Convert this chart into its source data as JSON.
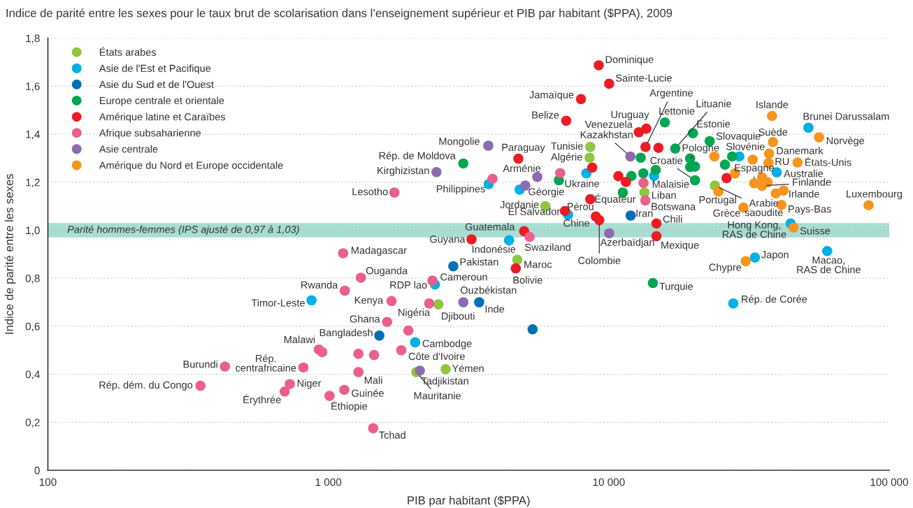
{
  "chart_data": {
    "type": "scatter",
    "title": "Indice de parité entre les sexes pour le taux brut de scolarisation dans l’enseignement supérieur et PIB par habitant ($PPA), 2009",
    "xlabel": "PIB par habitant ($PPA)",
    "ylabel": "Indice de parité entre les sexes",
    "log": "x",
    "xlim": [
      100,
      100000
    ],
    "xticks": [
      {
        "value": 100,
        "label": "100"
      },
      {
        "value": 1000,
        "label": "1 000"
      },
      {
        "value": 10000,
        "label": "10 000"
      },
      {
        "value": 100000,
        "label": "100 000"
      }
    ],
    "ylim": [
      0,
      1.8
    ],
    "yticks": [
      0,
      {
        "value": 0.2,
        "label": "0,2"
      },
      {
        "value": 0.4,
        "label": "0,4"
      },
      {
        "value": 0.6,
        "label": "0,6"
      },
      {
        "value": 0.8,
        "label": "0,8"
      },
      {
        "value": 1.0,
        "label": "1,0"
      },
      {
        "value": 1.2,
        "label": "1,2"
      },
      {
        "value": 1.4,
        "label": "1,4"
      },
      {
        "value": 1.6,
        "label": "1,6"
      },
      {
        "value": 1.8,
        "label": "1,8"
      }
    ],
    "grid": "y",
    "legend": "top left",
    "marker": "circle",
    "bands": [
      {
        "axis": "y",
        "from": 0.97,
        "to": 1.03,
        "label": "Parité hommes-femmes (IPS ajusté de 0,97 à 1,03)",
        "color": "#a8ddd2"
      }
    ],
    "series": [
      {
        "name": "États arabes",
        "color": "#8dc63f",
        "x": [
          8590,
          8540,
          5940,
          4720,
          2470,
          2620,
          2060,
          13400,
          23900
        ],
        "values": [
          1.347,
          1.302,
          1.1,
          0.877,
          0.691,
          0.421,
          0.409,
          1.157,
          1.186
        ]
      },
      {
        "name": "Asie de l'Est et Pacifique",
        "color": "#00b0e6",
        "x": [
          871,
          2400,
          2040,
          4410,
          3730,
          4810,
          8320,
          7160,
          14500,
          29200,
          39700,
          51500,
          44500,
          33200,
          60100,
          27800
        ],
        "values": [
          0.708,
          0.774,
          0.533,
          0.958,
          1.192,
          1.169,
          1.237,
          1.064,
          1.226,
          1.307,
          1.241,
          1.427,
          1.028,
          0.886,
          0.913,
          0.695
        ]
      },
      {
        "name": "Asie du Sud et de l'Ouest",
        "color": "#0070b5",
        "x": [
          2790,
          1520,
          3450,
          5350,
          11970
        ],
        "values": [
          0.85,
          0.561,
          0.7,
          0.587,
          1.061
        ]
      },
      {
        "name": "Europe centrale et orientale",
        "color": "#00a651",
        "x": [
          3030,
          6640,
          15850,
          19950,
          17260,
          22900,
          19500,
          13000,
          19500,
          20300,
          20300,
          14700,
          13280,
          12040,
          11220,
          27540,
          25950,
          14360
        ],
        "values": [
          1.278,
          1.208,
          1.449,
          1.404,
          1.34,
          1.371,
          1.299,
          1.302,
          1.263,
          1.265,
          1.208,
          1.251,
          1.237,
          1.226,
          1.157,
          1.307,
          1.273,
          0.78
        ]
      },
      {
        "name": "Amérique latine et Caraïbes",
        "color": "#ed1c24",
        "x": [
          9210,
          10030,
          7960,
          7050,
          4760,
          8730,
          8590,
          6980,
          8990,
          9250,
          4990,
          3240,
          4660,
          13610,
          12800,
          13520,
          15040,
          10820,
          11510,
          14790,
          14790,
          26300
        ],
        "values": [
          1.687,
          1.61,
          1.546,
          1.456,
          1.298,
          1.261,
          1.129,
          1.08,
          1.057,
          1.042,
          0.996,
          0.962,
          0.841,
          1.423,
          1.408,
          1.347,
          1.343,
          1.225,
          1.201,
          1.028,
          0.975,
          1.217
        ]
      },
      {
        "name": "Afrique subsaharienne",
        "color": "#ec5f8b",
        "x": [
          1129,
          1306,
          1145,
          1680,
          2290,
          1620,
          1930,
          2350,
          5220,
          1720,
          3850,
          6710,
          925,
          951,
          815,
          428,
          350,
          729,
          699,
          1010,
          1140,
          1280,
          1280,
          1456,
          1820,
          1445,
          13300,
          13500
        ],
        "values": [
          0.904,
          0.802,
          0.748,
          0.705,
          0.695,
          0.618,
          0.582,
          0.79,
          0.972,
          1.157,
          1.214,
          1.238,
          0.503,
          0.492,
          0.428,
          0.432,
          0.352,
          0.359,
          0.328,
          0.31,
          0.335,
          0.409,
          0.485,
          0.48,
          0.5,
          0.175,
          1.197,
          1.124
        ]
      },
      {
        "name": "Asie centrale",
        "color": "#8c6bb1",
        "x": [
          3720,
          2430,
          5560,
          5040,
          11940,
          10040,
          3030,
          2120
        ],
        "values": [
          1.352,
          1.242,
          1.222,
          1.186,
          1.307,
          0.987,
          0.7,
          0.415
        ]
      },
      {
        "name": "Amérique du Nord et Europe occidentale",
        "color": "#f7941d",
        "x": [
          38200,
          56200,
          38500,
          37300,
          37100,
          47100,
          23800,
          32600,
          28200,
          35200,
          36800,
          33000,
          35200,
          39400,
          42000,
          24600,
          30200,
          41300,
          84400,
          45600,
          30800
        ],
        "values": [
          1.476,
          1.387,
          1.367,
          1.319,
          1.28,
          1.282,
          1.307,
          1.294,
          1.237,
          1.22,
          1.2,
          1.195,
          1.185,
          1.153,
          1.165,
          1.161,
          1.094,
          1.105,
          1.104,
          1.011,
          0.871
        ]
      }
    ],
    "annotations": [
      {
        "text": "Dominique",
        "x": 9210,
        "y": 1.687
      },
      {
        "text": "Sainte-Lucie",
        "x": 10030,
        "y": 1.61
      },
      {
        "text": "Jamaïque",
        "x": 7960,
        "y": 1.546
      },
      {
        "text": "Belize",
        "x": 7050,
        "y": 1.456
      },
      {
        "text": "Argentine",
        "x": 13520,
        "y": 1.347
      },
      {
        "text": "Uruguay",
        "x": 13610,
        "y": 1.423
      },
      {
        "text": "Venezuela",
        "x": 12800,
        "y": 1.408
      },
      {
        "text": "Lettonie",
        "x": 15850,
        "y": 1.449
      },
      {
        "text": "Lituanie",
        "x": 17260,
        "y": 1.34
      },
      {
        "text": "Estonie",
        "x": 19950,
        "y": 1.404
      },
      {
        "text": "Kazakhstan",
        "x": 11940,
        "y": 1.307
      },
      {
        "text": "Slovaquie",
        "x": 22900,
        "y": 1.371
      },
      {
        "text": "Pologne",
        "x": 19500,
        "y": 1.299
      },
      {
        "text": "Croatie",
        "x": 20300,
        "y": 1.208
      },
      {
        "text": "Slovénie",
        "x": 27540,
        "y": 1.307
      },
      {
        "text": "Islande",
        "x": 38200,
        "y": 1.476
      },
      {
        "text": "Brunei Darussalam",
        "x": 51500,
        "y": 1.427
      },
      {
        "text": "Suède",
        "x": 38500,
        "y": 1.367
      },
      {
        "text": "Norvège",
        "x": 56200,
        "y": 1.387
      },
      {
        "text": "Danemark",
        "x": 37300,
        "y": 1.319
      },
      {
        "text": "RU",
        "x": 37100,
        "y": 1.28
      },
      {
        "text": "États-Unis",
        "x": 47100,
        "y": 1.282
      },
      {
        "text": "Espagne",
        "x": 33000,
        "y": 1.195
      },
      {
        "text": "Australie",
        "x": 39700,
        "y": 1.241
      },
      {
        "text": "Finlande",
        "x": 35200,
        "y": 1.185
      },
      {
        "text": "Irlande",
        "x": 42000,
        "y": 1.165
      },
      {
        "text": "Luxembourg",
        "x": 84400,
        "y": 1.104
      },
      {
        "text": "Portugal",
        "x": 24600,
        "y": 1.161
      },
      {
        "text": "Arabie\nsaoudite",
        "x": 23900,
        "y": 1.186
      },
      {
        "text": "Grèce",
        "x": 30200,
        "y": 1.094
      },
      {
        "text": "Pays-Bas",
        "x": 41300,
        "y": 1.105
      },
      {
        "text": "Hong Kong,\nRAS de Chine",
        "x": 44500,
        "y": 1.028
      },
      {
        "text": "Suisse",
        "x": 45600,
        "y": 1.011
      },
      {
        "text": "Japon",
        "x": 33200,
        "y": 0.886
      },
      {
        "text": "Chypre",
        "x": 30800,
        "y": 0.871
      },
      {
        "text": "Macao,\nRAS de Chine",
        "x": 60100,
        "y": 0.913
      },
      {
        "text": "Rép. de Corée",
        "x": 27800,
        "y": 0.695
      },
      {
        "text": "Turquie",
        "x": 14360,
        "y": 0.78
      },
      {
        "text": "Mexique",
        "x": 14790,
        "y": 0.975
      },
      {
        "text": "Chili",
        "x": 14790,
        "y": 1.028
      },
      {
        "text": "Azerbaïdjan",
        "x": 10040,
        "y": 0.987
      },
      {
        "text": "Iran",
        "x": 11970,
        "y": 1.061
      },
      {
        "text": "Botswana",
        "x": 13500,
        "y": 1.124
      },
      {
        "text": "Liban",
        "x": 13400,
        "y": 1.157
      },
      {
        "text": "Malaisie",
        "x": 14500,
        "y": 1.226
      },
      {
        "text": "Équateur",
        "x": 8590,
        "y": 1.129
      },
      {
        "text": "Pérou",
        "x": 8990,
        "y": 1.057
      },
      {
        "text": "Colombie",
        "x": 9250,
        "y": 1.042
      },
      {
        "text": "Chine",
        "x": 7160,
        "y": 1.064
      },
      {
        "text": "El Salvador",
        "x": 6980,
        "y": 1.08
      },
      {
        "text": "Jordanie",
        "x": 5940,
        "y": 1.1
      },
      {
        "text": "Ukraine",
        "x": 6640,
        "y": 1.208
      },
      {
        "text": "Géorgie",
        "x": 5040,
        "y": 1.186
      },
      {
        "text": "Arménie",
        "x": 5560,
        "y": 1.222
      },
      {
        "text": "Paraguay",
        "x": 4760,
        "y": 1.298
      },
      {
        "text": "Tunisie",
        "x": 8590,
        "y": 1.347
      },
      {
        "text": "Algérie",
        "x": 8540,
        "y": 1.302
      },
      {
        "text": "Mongolie",
        "x": 3720,
        "y": 1.352
      },
      {
        "text": "Rép. de Moldova",
        "x": 3030,
        "y": 1.278
      },
      {
        "text": "Kirghizistan",
        "x": 2430,
        "y": 1.242
      },
      {
        "text": "Philippines",
        "x": 3730,
        "y": 1.192
      },
      {
        "text": "Lesotho",
        "x": 1720,
        "y": 1.157
      },
      {
        "text": "Guatemala",
        "x": 4990,
        "y": 0.996
      },
      {
        "text": "Guyana",
        "x": 3240,
        "y": 0.962
      },
      {
        "text": "Indonésie",
        "x": 4410,
        "y": 0.958
      },
      {
        "text": "Swaziland",
        "x": 5220,
        "y": 0.972
      },
      {
        "text": "Pakistan",
        "x": 2790,
        "y": 0.85
      },
      {
        "text": "Maroc",
        "x": 4720,
        "y": 0.877
      },
      {
        "text": "Bolivie",
        "x": 4660,
        "y": 0.841
      },
      {
        "text": "Cameroun",
        "x": 2350,
        "y": 0.79
      },
      {
        "text": "RDP lao",
        "x": 2400,
        "y": 0.774
      },
      {
        "text": "Ouzbékistan",
        "x": 3030,
        "y": 0.7
      },
      {
        "text": "Inde",
        "x": 3450,
        "y": 0.7
      },
      {
        "text": "Djibouti",
        "x": 2470,
        "y": 0.691
      },
      {
        "text": "Nigéria",
        "x": 2290,
        "y": 0.695
      },
      {
        "text": "Kenya",
        "x": 1680,
        "y": 0.705
      },
      {
        "text": "Ghana",
        "x": 1620,
        "y": 0.618
      },
      {
        "text": "Bangladesh",
        "x": 1520,
        "y": 0.561
      },
      {
        "text": "Cambodge",
        "x": 2040,
        "y": 0.533
      },
      {
        "text": "Côte d'Ivoire",
        "x": 1820,
        "y": 0.5
      },
      {
        "text": "Yémen",
        "x": 2620,
        "y": 0.421
      },
      {
        "text": "Tadjikistan",
        "x": 2120,
        "y": 0.415
      },
      {
        "text": "Mauritanie",
        "x": 2060,
        "y": 0.409
      },
      {
        "text": "Mali",
        "x": 1280,
        "y": 0.409
      },
      {
        "text": "Guinée",
        "x": 1140,
        "y": 0.335
      },
      {
        "text": "Éthiopie",
        "x": 1010,
        "y": 0.31
      },
      {
        "text": "Tchad",
        "x": 1445,
        "y": 0.175
      },
      {
        "text": "Madagascar",
        "x": 1129,
        "y": 0.904
      },
      {
        "text": "Ouganda",
        "x": 1306,
        "y": 0.802
      },
      {
        "text": "Rwanda",
        "x": 1145,
        "y": 0.748
      },
      {
        "text": "Timor-Leste",
        "x": 871,
        "y": 0.708
      },
      {
        "text": "Malawi",
        "x": 925,
        "y": 0.503
      },
      {
        "text": "Rép.\ncentrafricaine",
        "x": 815,
        "y": 0.428
      },
      {
        "text": "Burundi",
        "x": 428,
        "y": 0.432
      },
      {
        "text": "Rép. dém. du Congo",
        "x": 350,
        "y": 0.352
      },
      {
        "text": "Niger",
        "x": 729,
        "y": 0.359
      },
      {
        "text": "Érythrée",
        "x": 699,
        "y": 0.328
      }
    ]
  }
}
